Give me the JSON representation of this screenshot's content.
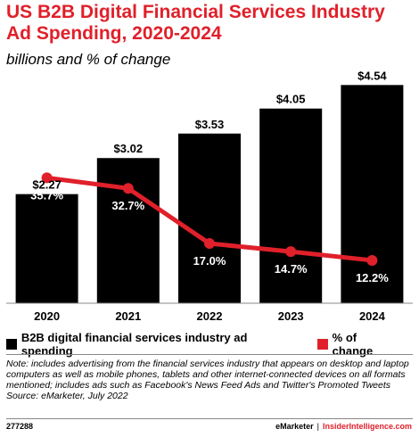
{
  "header": {
    "title": "US B2B Digital Financial Services Industry Ad Spending, 2020-2024",
    "subtitle": "billions and % of change"
  },
  "chart_data": {
    "type": "bar",
    "categories": [
      "2020",
      "2021",
      "2022",
      "2023",
      "2024"
    ],
    "series": [
      {
        "name": "B2B digital financial services industry ad spending",
        "type": "bar",
        "values": [
          2.27,
          3.02,
          3.53,
          4.05,
          4.54
        ],
        "labels": [
          "$2.27",
          "$3.02",
          "$3.53",
          "$4.05",
          "$4.54"
        ],
        "color": "#000000"
      },
      {
        "name": "% of change",
        "type": "line",
        "values": [
          35.7,
          32.7,
          17.0,
          14.7,
          12.2
        ],
        "labels": [
          "35.7%",
          "32.7%",
          "17.0%",
          "14.7%",
          "12.2%"
        ],
        "color": "#e0202a"
      }
    ],
    "bar_axis_max": 4.75,
    "line_axis_max": 65
  },
  "legend": {
    "bar_label": "B2B digital financial services industry ad spending",
    "line_label": "% of change",
    "bar_color": "#000000",
    "line_color": "#e0202a"
  },
  "note": {
    "text": "Note: includes advertising from the financial services industry that appears on desktop and laptop computers as well as mobile phones, tablets and other internet-connected devices on all formats mentioned; includes ads such as Facebook's News Feed Ads and Twitter's Promoted Tweets",
    "source": "Source: eMarketer, July 2022"
  },
  "footer": {
    "id": "277288",
    "brand1": "eMarketer",
    "separator": "|",
    "brand2": "InsiderIntelligence.com"
  }
}
